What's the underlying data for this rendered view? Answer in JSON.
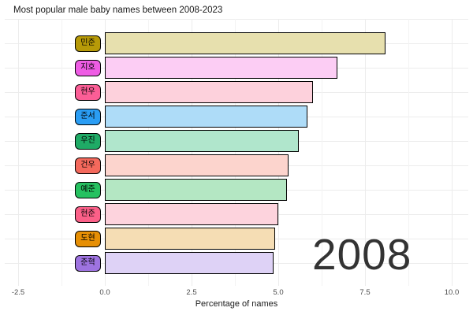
{
  "title": "Most popular male baby names between 2008-2023",
  "year_label": "2008",
  "x_axis": {
    "label": "Percentage of names",
    "ticks": [
      {
        "text": "-2.5",
        "value": -2.5
      },
      {
        "text": "0.0",
        "value": 0.0
      },
      {
        "text": "2.5",
        "value": 2.5
      },
      {
        "text": "5.0",
        "value": 5.0
      },
      {
        "text": "7.5",
        "value": 7.5
      },
      {
        "text": "10.0",
        "value": 10.0
      }
    ]
  },
  "chart_data": {
    "type": "bar",
    "orientation": "horizontal",
    "title": "Most popular male baby names between 2008-2023",
    "xlabel": "Percentage of names",
    "ylabel": "",
    "xlim": [
      -2.5,
      10.0
    ],
    "grid": true,
    "legend": false,
    "year_annotation": "2008",
    "categories": [
      "민준",
      "지호",
      "현우",
      "준서",
      "우진",
      "건우",
      "예준",
      "현준",
      "도현",
      "준혁"
    ],
    "values": [
      8.1,
      6.7,
      6.0,
      5.85,
      5.6,
      5.3,
      5.25,
      5.0,
      4.9,
      4.87
    ],
    "bar_fill_colors": [
      "#e7e0ae",
      "#fccdf4",
      "#fdd1dc",
      "#aedcf8",
      "#b0e6cc",
      "#fcd4cd",
      "#b4e7c3",
      "#fdd3dd",
      "#f5ddb4",
      "#ded2f6"
    ],
    "label_fill_colors": [
      "#b79a08",
      "#ee5ce4",
      "#fb5e96",
      "#2a9df4",
      "#1fab66",
      "#f4695c",
      "#26c160",
      "#fb6088",
      "#e68f05",
      "#9e73e0"
    ],
    "bar_border_color": "#000000",
    "minor_grid_values": [
      -1.25,
      1.25,
      3.75,
      6.25,
      8.75
    ]
  }
}
